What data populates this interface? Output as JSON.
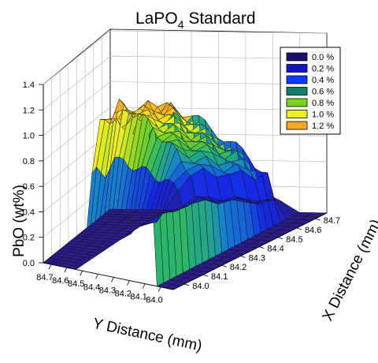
{
  "chart_data": {
    "type": "surface3d",
    "title_main": "LaPO",
    "title_sub": "4",
    "title_rest": " Standard",
    "zlabel": "PbO (wt%)",
    "ylabel": "Y Distance (mm)",
    "xlabel": "X Distance (mm)",
    "z_ticks": [
      "0.0",
      "0.2",
      "0.4",
      "0.6",
      "0.8",
      "1.0",
      "1.2",
      "1.4"
    ],
    "y_ticks": [
      "84.7",
      "84.6",
      "84.5",
      "84.4",
      "84.3",
      "84.2",
      "84.1",
      "84.0"
    ],
    "x_ticks": [
      "84.0",
      "84.1",
      "84.2",
      "84.3",
      "84.4",
      "84.5",
      "84.6",
      "84.7"
    ],
    "zlim": [
      0,
      1.4
    ],
    "legend_position": "top-right",
    "legend": [
      {
        "label": "0.0 %",
        "color": "#1a1070"
      },
      {
        "label": "0.2  %",
        "color": "#1414c8"
      },
      {
        "label": "0.4 %",
        "color": "#0a3cff"
      },
      {
        "label": "0.6 %",
        "color": "#11806a"
      },
      {
        "label": "0.8 %",
        "color": "#7ad21e"
      },
      {
        "label": "1.0 %",
        "color": "#f0f01e"
      },
      {
        "label": "1.2 %",
        "color": "#f5a623"
      }
    ],
    "colors": {
      "low": "#2a1c8c",
      "mid1": "#0a3cff",
      "mid2": "#1aa06a",
      "mid3": "#7ad21e",
      "mid4": "#f0f01e",
      "high": "#f5a623"
    },
    "grid": true
  }
}
